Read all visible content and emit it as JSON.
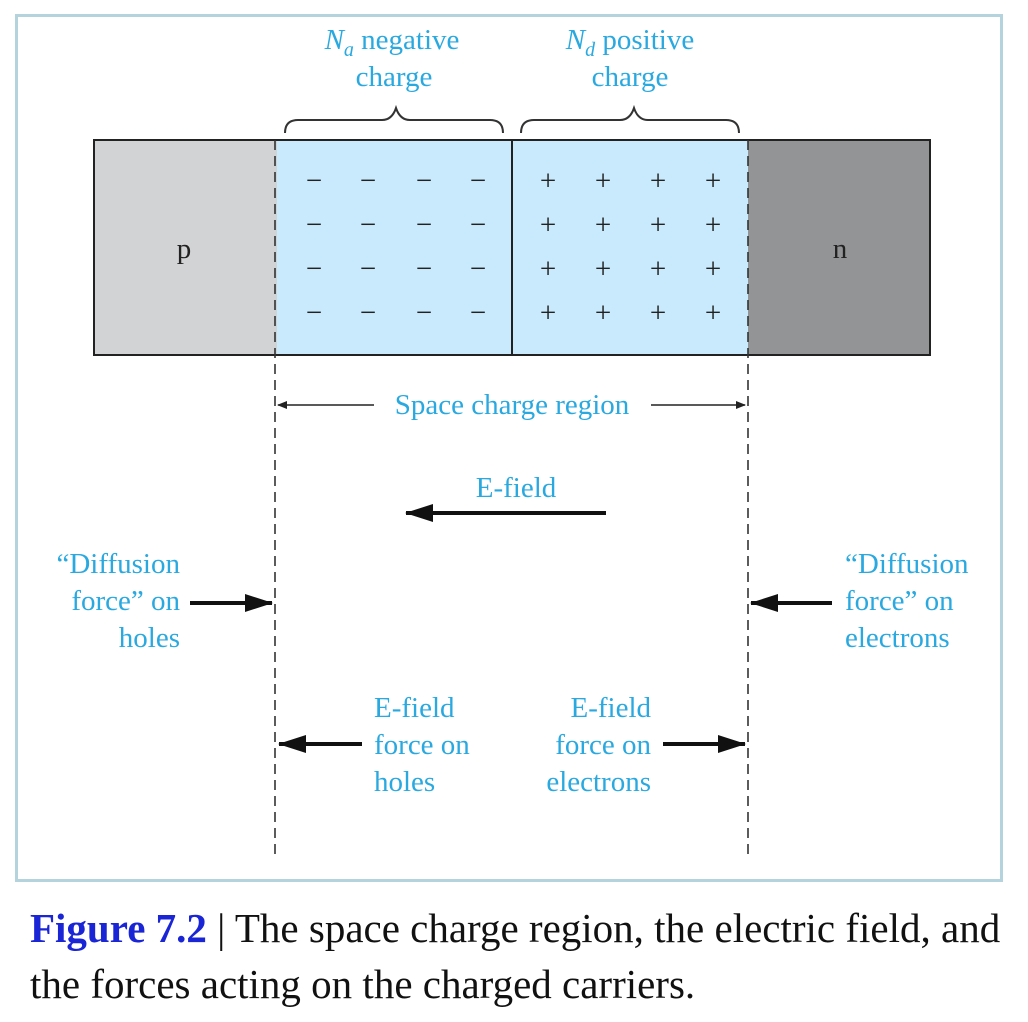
{
  "diagram": {
    "na_symbol": "N",
    "na_subscript": "a",
    "na_label_line1": " negative",
    "na_label_line2": "charge",
    "nd_symbol": "N",
    "nd_subscript": "d",
    "nd_label_line1": " positive",
    "nd_label_line2": "charge",
    "p_label": "p",
    "n_label": "n",
    "negative_charge_symbol": "−",
    "positive_charge_symbol": "+",
    "charge_rows": 4,
    "charge_columns": 4,
    "space_charge_label": "Space charge region",
    "efield_label": "E-field",
    "diffusion_holes_lines": [
      "“Diffusion",
      "force” on",
      "holes"
    ],
    "diffusion_electrons_lines": [
      "“Diffusion",
      "force” on",
      "electrons"
    ],
    "efield_holes_lines": [
      "E-field",
      "force on",
      "holes"
    ],
    "efield_electrons_lines": [
      "E-field",
      "force on",
      "electrons"
    ],
    "colors": {
      "p_region": "#d2d3d5",
      "n_region": "#939496",
      "depletion": "#c8eafc",
      "label_cyan": "#29a9e0",
      "frame": "#b5d3dc",
      "caption_label": "#1a25d6"
    }
  },
  "caption": {
    "label": "Figure 7.2",
    "separator": " | ",
    "text": "The space charge region, the electric field, and the forces acting on the charged carriers."
  }
}
